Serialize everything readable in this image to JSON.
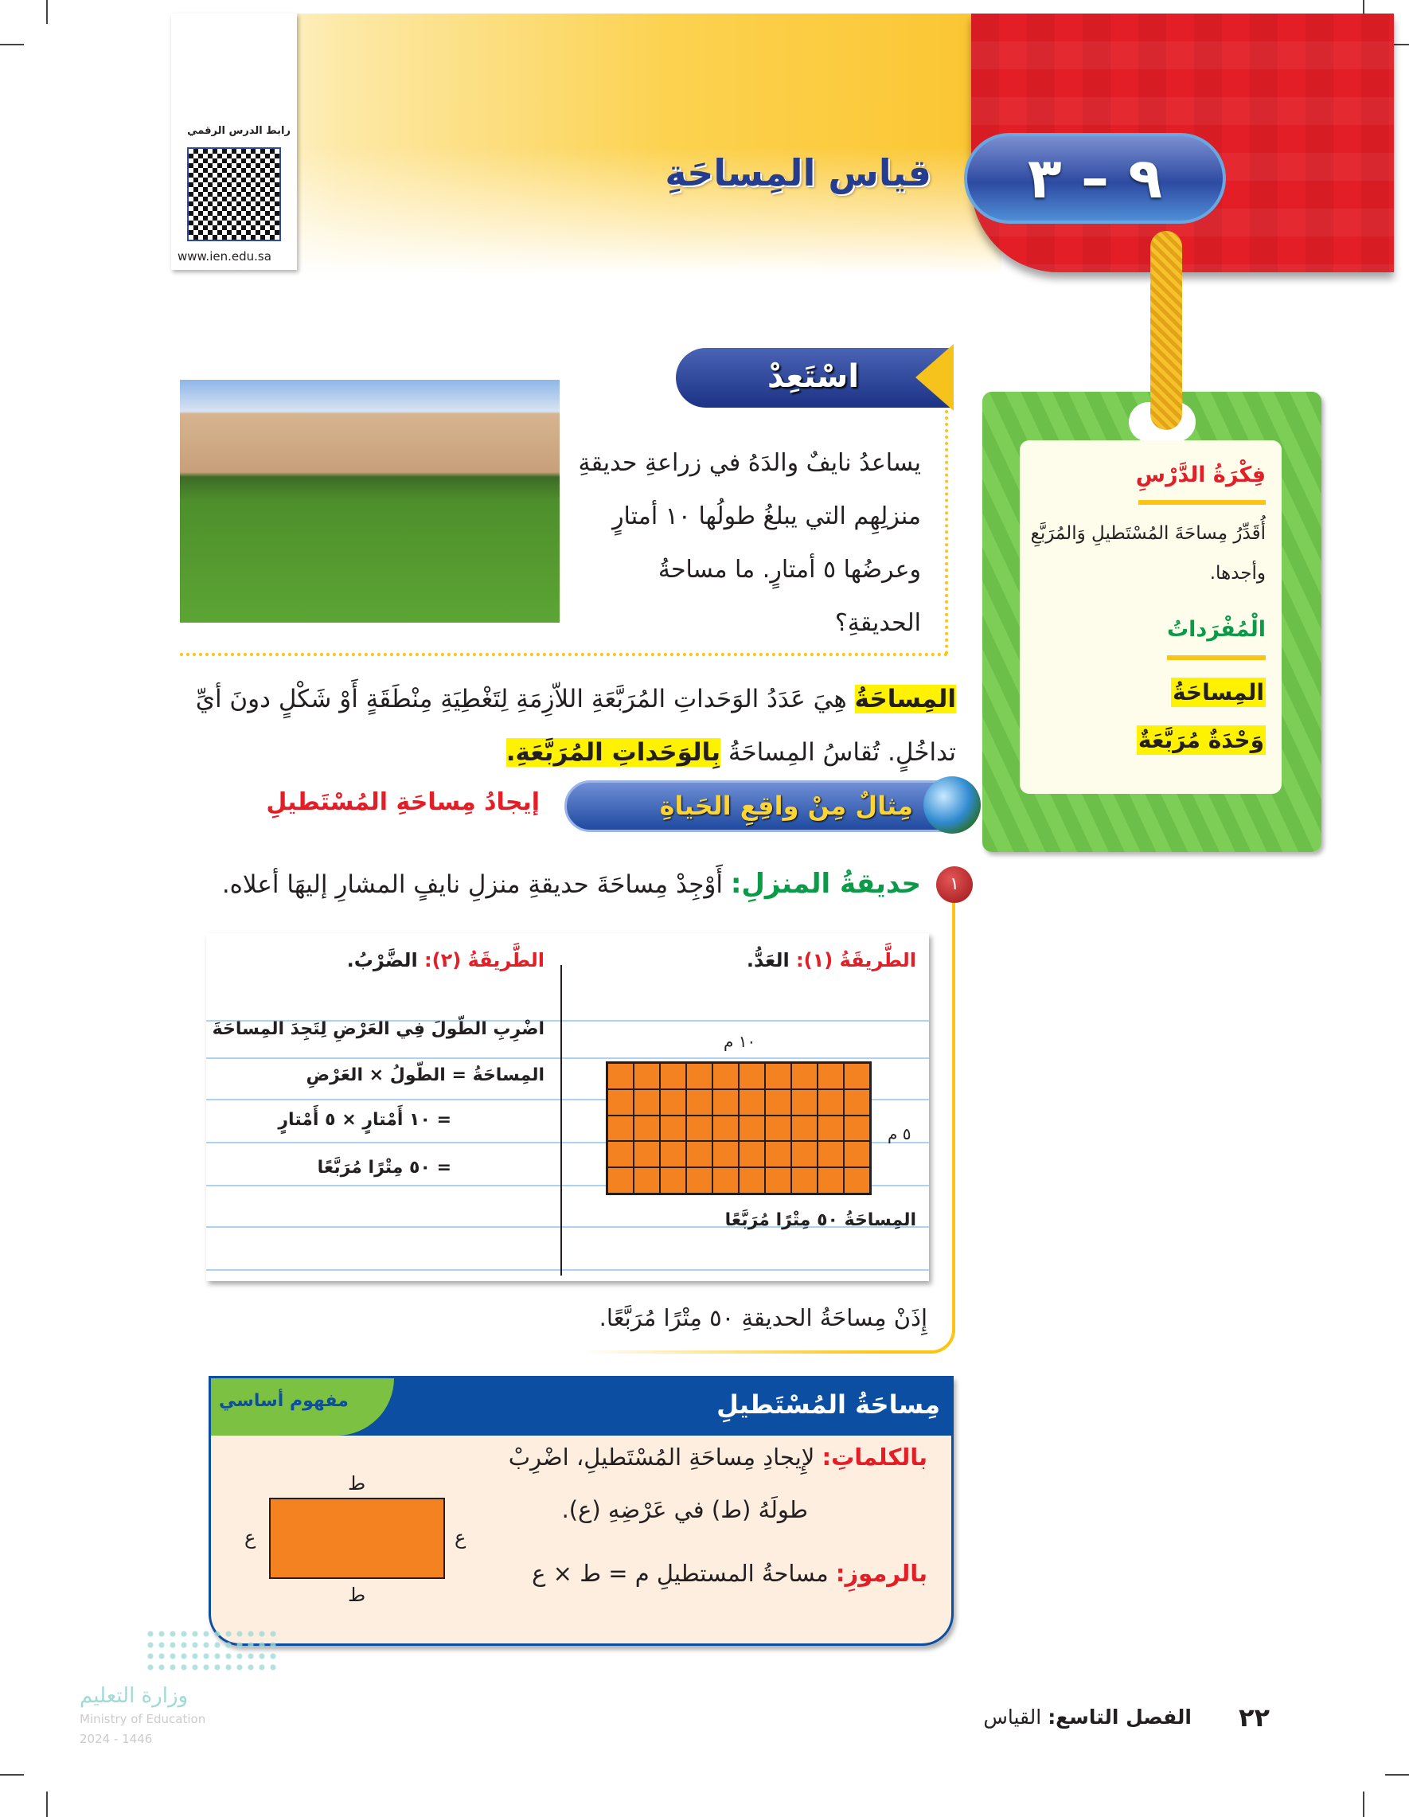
{
  "header": {
    "lesson_number": "٩ – ٣",
    "lesson_title": "قياس المِساحَةِ",
    "qr_label": "رابط الدرس الرقمي",
    "qr_url": "www.ien.edu.sa"
  },
  "sidebar": {
    "idea_title": "فِكْرَةُ الدَّرْسِ",
    "idea_text": "أُقَدِّرُ مِساحَةَ المُسْتَطيلِ وَالمُرَبَّعِ وأجدها.",
    "vocab_title": "الْمُفْرَداتُ",
    "vocab": [
      "المِساحَةُ",
      "وَحْدَةٌ مُرَبَّعَةٌ"
    ]
  },
  "ready": {
    "title": "اسْتَعِدْ",
    "lines": [
      "يساعدُ نايفٌ والدَهُ في زراعةِ حديقةِ",
      "منزلِهِم التي يبلغُ طولُها ١٠ أمتارٍ",
      "وعرضُها ٥ أمتارٍ. ما مساحةُ",
      "الحديقةِ؟"
    ]
  },
  "definition": {
    "term": "المِساحَةُ",
    "text1": " هِيَ عَدَدُ الوَحَداتِ المُرَبَّعَةِ اللاّزِمَةِ لِتَغْطِيَةِ مِنْطَقَةٍ أَوْ شَكْلٍ دونَ أيِّ",
    "text2": "تداخُلٍ. تُقاسُ المِساحَةُ ",
    "term2": "بِالوَحَداتِ المُرَبَّعَةِ."
  },
  "example": {
    "banner": "مِثالٌ مِنْ واقِعِ الحَياةِ",
    "heading": "إيجادُ مِساحَةِ المُسْتَطيلِ",
    "number": "١",
    "label": "حديقةُ المنزلِ:",
    "question": " أَوْجِدْ مِساحَةَ حديقةِ منزلِ نايفٍ المشارِ إليهَا أعلاه.",
    "method1": {
      "title": "الطَّريقَةُ (١):",
      "name": " العَدُّ.",
      "length_label": "١٠ م",
      "width_label": "٥ م",
      "result": "المِساحَةُ ٥٠ مِتْرًا مُرَبَّعًا",
      "grid_columns": 10,
      "grid_rows": 5
    },
    "method2": {
      "title": "الطَّريقَةُ (٢):",
      "name": " الضَّرْبُ.",
      "lines": [
        "اضْرِبِ الطّولَ فِي العَرْضِ لِتَجِدَ المِساحَةَ",
        "المِساحَةُ = الطّولُ × العَرْضِ",
        "= ١٠ أَمْتارٍ × ٥ أَمْتارٍ",
        "= ٥٠ مِتْرًا مُرَبَّعًا"
      ]
    },
    "conclusion": "إِذَنْ مِساحَةُ الحديقةِ ٥٠ مِتْرًا مُرَبَّعًا."
  },
  "concept": {
    "title": "مِساحَةُ المُسْتَطيلِ",
    "tag": "مفهوم أساسي",
    "words_label": "بالكلماتِ:",
    "words_line1": " لإِيجادِ مِساحَةِ المُسْتَطيلِ، اضْرِبْ",
    "words_line2": "طولَهُ (ط) في عَرْضِهِ (ع).",
    "symbols_label": "بالرموزِ:",
    "symbols_text": " مساحةُ المستطيلِ م = ط × ع",
    "length_sym": "ط",
    "width_sym": "ع"
  },
  "footer": {
    "page": "٢٢",
    "chapter": "الفصل التاسع:",
    "chapter_name": " القياس",
    "ministry_ar": "وزارة التعليم",
    "ministry_en": "Ministry of Education",
    "year": "2024 - 1446"
  }
}
